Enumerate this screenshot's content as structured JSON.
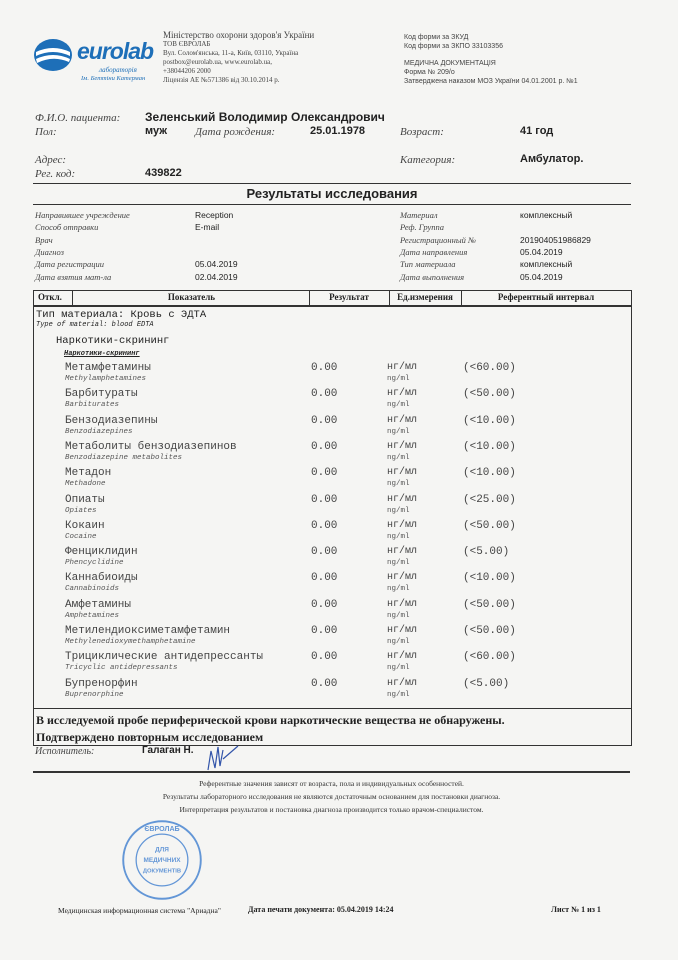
{
  "header": {
    "logo": {
      "brand": "eurolab",
      "sub1": "лабораторія",
      "sub2": "Ім. Беттіни Катерман"
    },
    "org_lines": [
      "Міністерство охорони здоров'я України",
      "ТОВ ЄВРОЛАБ",
      "Вул. Солом'янська, 11-а, Київ, 03110, Україна",
      "postbox@eurolab.ua, www.eurolab.ua,",
      "+38044206 2000",
      "Ліцензія АЕ №571386 від 30.10.2014 р."
    ],
    "form_lines": [
      "Код форми за ЗКУД",
      "Код форми за ЗКПО 33103356",
      "",
      "МЕДИЧНА ДОКУМЕНТАЦІЯ",
      "Форма № 209/о",
      "Затверджена наказом МОЗ України  04.01.2001 р. №1"
    ]
  },
  "patient": {
    "name_label": "Ф.И.О. пациента:",
    "name": "Зеленський Володимир Олександрович",
    "sex_label": "Пол:",
    "sex": "муж",
    "dob_label": "Дата рождения:",
    "dob": "25.01.1978",
    "age_label": "Возраст:",
    "age": "41 год",
    "address_label": "Адрес:",
    "category_label": "Категория:",
    "category": "Амбулатор.",
    "reg_label": "Рег. код:",
    "reg": "439822"
  },
  "title": "Результаты исследования",
  "info_left": [
    {
      "label": "Направившее учреждение",
      "value": "Reception"
    },
    {
      "label": "Способ отправки",
      "value": "E-mail"
    },
    {
      "label": "Врач",
      "value": ""
    },
    {
      "label": "Диагноз",
      "value": ""
    },
    {
      "label": "Дата регистрации",
      "value": "05.04.2019"
    },
    {
      "label": "Дата взятия мат-ла",
      "value": "02.04.2019"
    }
  ],
  "info_right": [
    {
      "label": "Материал",
      "value": "комплексный"
    },
    {
      "label": "Реф. Группа",
      "value": ""
    },
    {
      "label": "Регистрационный №",
      "value": "201904051986829"
    },
    {
      "label": "Дата направления",
      "value": "05.04.2019"
    },
    {
      "label": "Тип материала",
      "value": "комплексный"
    },
    {
      "label": "Дата выполнения",
      "value": "05.04.2019"
    }
  ],
  "table": {
    "columns": [
      "Откл.",
      "Показатель",
      "Результат",
      "Ед.измерения",
      "Референтный интервал"
    ],
    "material": "Тип материала: Кровь с ЭДТА",
    "material_en": "Type of material: blood EDTA",
    "group": "Наркотики-скрининг",
    "subgroup": "Наркотики-скрининг",
    "rows": [
      {
        "name": "Метамфетамины",
        "en": "Methylamphetamines",
        "result": "0.00",
        "unit": "нг/мл",
        "unit_en": "ng/ml",
        "ref": "(<60.00)"
      },
      {
        "name": "Барбитураты",
        "en": "Barbiturates",
        "result": "0.00",
        "unit": "нг/мл",
        "unit_en": "ng/ml",
        "ref": "(<50.00)"
      },
      {
        "name": "Бензодиазепины",
        "en": "Benzodiazepines",
        "result": "0.00",
        "unit": "нг/мл",
        "unit_en": "ng/ml",
        "ref": "(<10.00)"
      },
      {
        "name": "Метаболиты бензодиазепинов",
        "en": "Benzodiazepine metabolites",
        "result": "0.00",
        "unit": "нг/мл",
        "unit_en": "ng/ml",
        "ref": "(<10.00)"
      },
      {
        "name": "Метадон",
        "en": "Methadone",
        "result": "0.00",
        "unit": "нг/мл",
        "unit_en": "ng/ml",
        "ref": "(<10.00)"
      },
      {
        "name": "Опиаты",
        "en": "Opiates",
        "result": "0.00",
        "unit": "нг/мл",
        "unit_en": "ng/ml",
        "ref": "(<25.00)"
      },
      {
        "name": "Кокаин",
        "en": "Cocaine",
        "result": "0.00",
        "unit": "нг/мл",
        "unit_en": "ng/ml",
        "ref": "(<50.00)"
      },
      {
        "name": "Фенциклидин",
        "en": "Phencyclidine",
        "result": "0.00",
        "unit": "нг/мл",
        "unit_en": "ng/ml",
        "ref": "(<5.00)"
      },
      {
        "name": "Каннабиоиды",
        "en": "Cannabinoids",
        "result": "0.00",
        "unit": "нг/мл",
        "unit_en": "ng/ml",
        "ref": "(<10.00)"
      },
      {
        "name": "Амфетамины",
        "en": "Amphetamines",
        "result": "0.00",
        "unit": "нг/мл",
        "unit_en": "ng/ml",
        "ref": "(<50.00)"
      },
      {
        "name": "Метилендиоксиметамфетамин",
        "en": "Methylenedioxymethamphetamine",
        "result": "0.00",
        "unit": "нг/мл",
        "unit_en": "ng/ml",
        "ref": "(<50.00)"
      },
      {
        "name": "Трициклические антидепрессанты",
        "en": "Tricyclic antidepressants",
        "result": "0.00",
        "unit": "нг/мл",
        "unit_en": "ng/ml",
        "ref": "(<60.00)"
      },
      {
        "name": "Бупренорфин",
        "en": "Buprenorphine",
        "result": "0.00",
        "unit": "нг/мл",
        "unit_en": "ng/ml",
        "ref": "(<5.00)"
      }
    ]
  },
  "conclusion": [
    "В исследуемой пробе периферической крови наркотические вещества не обнаружены.",
    "Подтверждено повторным исследованием"
  ],
  "executor_label": "Исполнитель:",
  "executor": "Галаган Н.",
  "notes": [
    "Референтные значения зависят от возраста, пола и индивидуальных особенностей.",
    "Результаты лабораторного исследования не являются достаточным основанием для постановки диагноза.",
    "Интерпретация результатов и постановка диагноза производится только врачом-специалистом."
  ],
  "stamp": {
    "text": "ДЛЯ МЕДИЧНИХ ДОКУМЕНТІВ",
    "ring": "ЄВРОЛАБ"
  },
  "footer": {
    "system": "Медицинская информационная система \"Ариадна\"",
    "print_date": "Дата печати документа: 05.04.2019 14:24",
    "sheet": "Лист № 1 из 1"
  },
  "colors": {
    "logo_blue": "#1e6fb8",
    "stamp_blue": "#3f7fd0"
  }
}
